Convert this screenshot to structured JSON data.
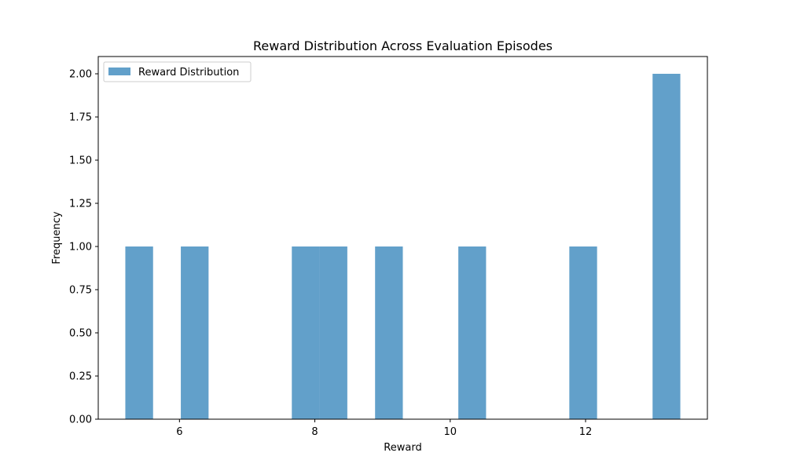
{
  "chart_data": {
    "type": "bar",
    "title": "Reward Distribution Across Evaluation Episodes",
    "xlabel": "Reward",
    "ylabel": "Frequency",
    "xlim": [
      4.8,
      13.8
    ],
    "ylim": [
      0,
      2.1
    ],
    "xticks": [
      6,
      8,
      10,
      12
    ],
    "yticks": [
      0.0,
      0.25,
      0.5,
      0.75,
      1.0,
      1.25,
      1.5,
      1.75,
      2.0
    ],
    "ytick_labels": [
      "0.00",
      "0.25",
      "0.50",
      "0.75",
      "1.00",
      "1.25",
      "1.50",
      "1.75",
      "2.00"
    ],
    "xtick_labels": [
      "6",
      "8",
      "10",
      "12"
    ],
    "legend_position": "upper-left",
    "bar_color": "#1f77b4",
    "bar_alpha": 0.7,
    "series": [
      {
        "name": "Reward Distribution",
        "bins": [
          {
            "x0": 5.2,
            "x1": 5.61,
            "value": 1
          },
          {
            "x0": 6.02,
            "x1": 6.43,
            "value": 1
          },
          {
            "x0": 7.66,
            "x1": 8.07,
            "value": 1
          },
          {
            "x0": 8.07,
            "x1": 8.48,
            "value": 1
          },
          {
            "x0": 8.89,
            "x1": 9.3,
            "value": 1
          },
          {
            "x0": 10.12,
            "x1": 10.53,
            "value": 1
          },
          {
            "x0": 11.76,
            "x1": 12.17,
            "value": 1
          },
          {
            "x0": 12.99,
            "x1": 13.4,
            "value": 2
          }
        ]
      }
    ]
  }
}
